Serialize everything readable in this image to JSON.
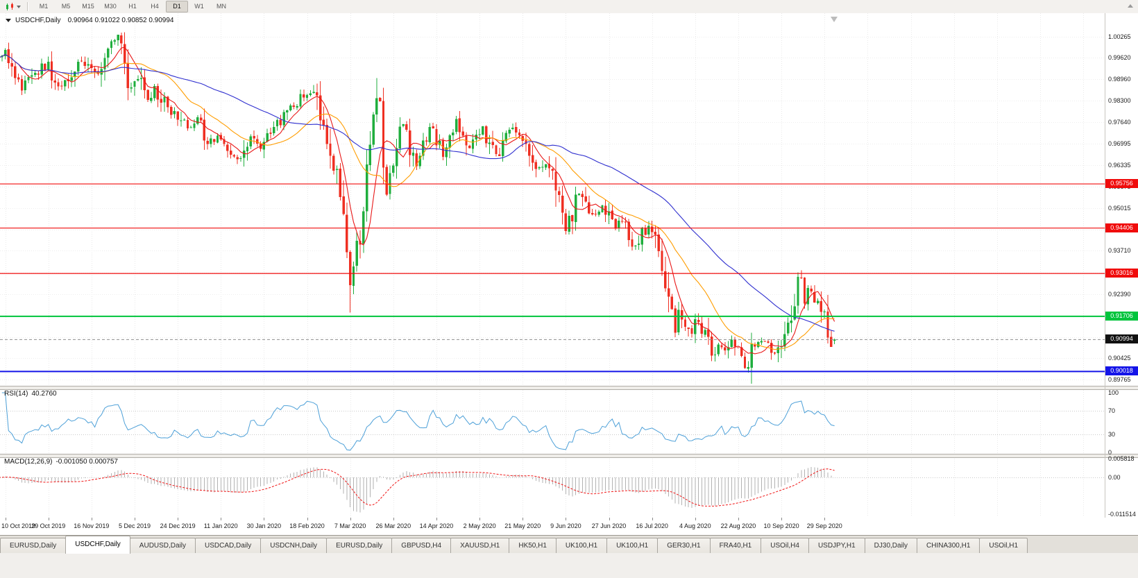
{
  "toolbar": {
    "periods": [
      "M1",
      "M5",
      "M15",
      "M30",
      "H1",
      "H4",
      "D1",
      "W1",
      "MN"
    ],
    "active_period": "D1"
  },
  "chart": {
    "symbol_header": "USDCHF,Daily",
    "ohlc_header": "0.90964 0.91022 0.90852 0.90994",
    "price_axis_labels": [
      "1.00265",
      "0.99620",
      "0.98960",
      "0.98300",
      "0.97640",
      "0.96995",
      "0.96335",
      "0.95675",
      "0.95015",
      "0.94355",
      "0.93710",
      "0.93050",
      "0.92390",
      "0.91730",
      "0.91070",
      "0.90425",
      "0.89765"
    ]
  },
  "rsi_header": {
    "title": "RSI(14)",
    "value": "40.2760"
  },
  "macd_header": {
    "title": "MACD(12,26,9)",
    "values": "-0.001050 0.000757"
  },
  "chart_data": {
    "type": "candlestick",
    "symbol": "USDCHF",
    "timeframe": "Daily",
    "last_bar_ohlc": {
      "open": 0.90964,
      "high": 0.91022,
      "low": 0.90852,
      "close": 0.90994
    },
    "visible_price_range": [
      0.8958,
      1.0098
    ],
    "num_bars": 253,
    "first_label_bar": 2,
    "bars_per_label": 13,
    "time_labels": [
      "10 Oct 2019",
      "29 Oct 2019",
      "16 Nov 2019",
      "5 Dec 2019",
      "24 Dec 2019",
      "11 Jan 2020",
      "30 Jan 2020",
      "18 Feb 2020",
      "7 Mar 2020",
      "26 Mar 2020",
      "14 Apr 2020",
      "2 May 2020",
      "21 May 2020",
      "9 Jun 2020",
      "27 Jun 2020",
      "16 Jul 2020",
      "4 Aug 2020",
      "22 Aug 2020",
      "10 Sep 2020",
      "29 Sep 2020"
    ],
    "anchors": [
      [
        0,
        0.9972
      ],
      [
        2,
        0.9988
      ],
      [
        4,
        0.993
      ],
      [
        7,
        0.9862
      ],
      [
        10,
        0.99
      ],
      [
        13,
        0.993
      ],
      [
        15,
        0.9948
      ],
      [
        18,
        0.9868
      ],
      [
        21,
        0.99
      ],
      [
        24,
        0.9958
      ],
      [
        27,
        0.9935
      ],
      [
        30,
        0.9898
      ],
      [
        33,
        0.999
      ],
      [
        36,
        1.0018
      ],
      [
        38,
        0.9935
      ],
      [
        40,
        0.9868
      ],
      [
        42,
        0.9902
      ],
      [
        45,
        0.9838
      ],
      [
        47,
        0.9872
      ],
      [
        51,
        0.9802
      ],
      [
        54,
        0.9788
      ],
      [
        57,
        0.9738
      ],
      [
        60,
        0.9768
      ],
      [
        63,
        0.9706
      ],
      [
        67,
        0.9718
      ],
      [
        70,
        0.9678
      ],
      [
        73,
        0.9657
      ],
      [
        76,
        0.9718
      ],
      [
        79,
        0.9692
      ],
      [
        82,
        0.9742
      ],
      [
        85,
        0.9772
      ],
      [
        88,
        0.9808
      ],
      [
        92,
        0.9846
      ],
      [
        95,
        0.985
      ],
      [
        97,
        0.9788
      ],
      [
        99,
        0.97
      ],
      [
        101,
        0.9638
      ],
      [
        103,
        0.956
      ],
      [
        104,
        0.948
      ],
      [
        105,
        0.933
      ],
      [
        106,
        0.9262
      ],
      [
        107,
        0.934
      ],
      [
        108,
        0.9428
      ],
      [
        109,
        0.9386
      ],
      [
        110,
        0.95
      ],
      [
        111,
        0.9612
      ],
      [
        112,
        0.9704
      ],
      [
        113,
        0.9826
      ],
      [
        114,
        0.9858
      ],
      [
        115,
        0.9792
      ],
      [
        116,
        0.9664
      ],
      [
        117,
        0.9572
      ],
      [
        119,
        0.9624
      ],
      [
        120,
        0.9702
      ],
      [
        122,
        0.9758
      ],
      [
        124,
        0.9682
      ],
      [
        126,
        0.9634
      ],
      [
        128,
        0.9702
      ],
      [
        130,
        0.9742
      ],
      [
        132,
        0.9718
      ],
      [
        134,
        0.9662
      ],
      [
        136,
        0.9706
      ],
      [
        138,
        0.9766
      ],
      [
        140,
        0.9728
      ],
      [
        142,
        0.9682
      ],
      [
        144,
        0.9716
      ],
      [
        146,
        0.9744
      ],
      [
        148,
        0.97
      ],
      [
        150,
        0.9656
      ],
      [
        152,
        0.9722
      ],
      [
        154,
        0.9746
      ],
      [
        157,
        0.973
      ],
      [
        159,
        0.97
      ],
      [
        161,
        0.966
      ],
      [
        163,
        0.9622
      ],
      [
        165,
        0.9642
      ],
      [
        167,
        0.9608
      ],
      [
        169,
        0.9528
      ],
      [
        170,
        0.9452
      ],
      [
        171,
        0.9428
      ],
      [
        173,
        0.9492
      ],
      [
        175,
        0.9546
      ],
      [
        177,
        0.9512
      ],
      [
        179,
        0.9476
      ],
      [
        182,
        0.9506
      ],
      [
        184,
        0.9476
      ],
      [
        186,
        0.9442
      ],
      [
        188,
        0.9462
      ],
      [
        190,
        0.9412
      ],
      [
        192,
        0.9386
      ],
      [
        194,
        0.9422
      ],
      [
        197,
        0.9442
      ],
      [
        199,
        0.9382
      ],
      [
        200,
        0.9312
      ],
      [
        201,
        0.9252
      ],
      [
        202,
        0.9202
      ],
      [
        203,
        0.9162
      ],
      [
        204,
        0.9132
      ],
      [
        205,
        0.9182
      ],
      [
        207,
        0.9142
      ],
      [
        209,
        0.9112
      ],
      [
        210,
        0.9156
      ],
      [
        212,
        0.9132
      ],
      [
        214,
        0.9092
      ],
      [
        215,
        0.9052
      ],
      [
        217,
        0.9082
      ],
      [
        219,
        0.9076
      ],
      [
        221,
        0.9106
      ],
      [
        223,
        0.9062
      ],
      [
        225,
        0.9032
      ],
      [
        226,
        0.9006
      ],
      [
        227,
        0.9072
      ],
      [
        229,
        0.9096
      ],
      [
        232,
        0.9082
      ],
      [
        234,
        0.9056
      ],
      [
        236,
        0.9092
      ],
      [
        238,
        0.9152
      ],
      [
        240,
        0.9232
      ],
      [
        241,
        0.9292
      ],
      [
        242,
        0.9262
      ],
      [
        243,
        0.9226
      ],
      [
        245,
        0.9252
      ],
      [
        247,
        0.9216
      ],
      [
        249,
        0.9172
      ],
      [
        250,
        0.9122
      ],
      [
        251,
        0.9068
      ],
      [
        252,
        0.9099
      ]
    ],
    "forced_bars": {
      "36": {
        "high": 1.0023
      },
      "106": {
        "low": 0.9182
      },
      "114": {
        "high": 0.9899
      },
      "226": {
        "low": 0.8998
      },
      "241": {
        "high": 0.9305
      },
      "252": {
        "open": 0.90964,
        "high": 0.91022,
        "low": 0.90852,
        "close": 0.90994
      }
    },
    "candle_colors": {
      "up": "#1fae3d",
      "down": "#ef2f22"
    },
    "moving_averages": [
      {
        "period": 7,
        "color": "#e81717"
      },
      {
        "period": 20,
        "color": "#ff9d00"
      },
      {
        "period": 50,
        "color": "#3030cf"
      }
    ],
    "horizontal_lines": [
      {
        "price": 0.95756,
        "label": "0.95756",
        "color": "#f00c0c",
        "width": 1.2
      },
      {
        "price": 0.94406,
        "label": "0.94406",
        "color": "#f00c0c",
        "width": 1.2
      },
      {
        "price": 0.93016,
        "label": "0.93016",
        "color": "#f00c0c",
        "width": 1.2
      },
      {
        "price": 0.91706,
        "label": "0.91706",
        "color": "#00c43c",
        "width": 2
      },
      {
        "price": 0.90018,
        "label": "0.90018",
        "color": "#1414e8",
        "width": 2
      }
    ],
    "current_price": {
      "value": 0.90994,
      "label": "0.90994",
      "badge_color": "#111111"
    },
    "rsi": {
      "period": 14,
      "current": 40.276,
      "color": "#4da0d8",
      "levels": [
        70,
        30
      ],
      "axis_labels": [
        "100",
        "70",
        "30",
        "0"
      ]
    },
    "macd": {
      "fast": 12,
      "slow": 26,
      "signal": 9,
      "current_macd": -0.00105,
      "current_signal": 0.000757,
      "histogram_color": "#b2b2b2",
      "signal_color": "#f01414",
      "axis_labels": [
        "0.005818",
        "0.00",
        "-0.011514"
      ]
    }
  },
  "tabs": [
    {
      "label": "EURUSD,Daily",
      "active": false
    },
    {
      "label": "USDCHF,Daily",
      "active": true
    },
    {
      "label": "AUDUSD,Daily",
      "active": false
    },
    {
      "label": "USDCAD,Daily",
      "active": false
    },
    {
      "label": "USDCNH,Daily",
      "active": false
    },
    {
      "label": "EURUSD,Daily",
      "active": false
    },
    {
      "label": "GBPUSD,H4",
      "active": false
    },
    {
      "label": "XAUUSD,H1",
      "active": false
    },
    {
      "label": "HK50,H1",
      "active": false
    },
    {
      "label": "UK100,H1",
      "active": false
    },
    {
      "label": "UK100,H1",
      "active": false
    },
    {
      "label": "GER30,H1",
      "active": false
    },
    {
      "label": "FRA40,H1",
      "active": false
    },
    {
      "label": "USOil,H4",
      "active": false
    },
    {
      "label": "USDJPY,H1",
      "active": false
    },
    {
      "label": "DJ30,Daily",
      "active": false
    },
    {
      "label": "CHINA300,H1",
      "active": false
    },
    {
      "label": "USOil,H1",
      "active": false
    }
  ]
}
